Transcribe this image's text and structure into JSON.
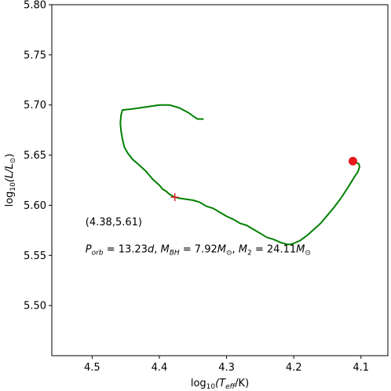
{
  "chart_data": {
    "type": "line",
    "xlabel_parts": {
      "pre": "log",
      "sub1": "10",
      "mid": "(T",
      "sub2": "eff",
      "post": "/K)"
    },
    "ylabel_parts": {
      "pre": "log",
      "sub1": "10",
      "mid": "(L/L",
      "sub2": "⊙",
      "post": ")"
    },
    "xlim": [
      4.56,
      4.06
    ],
    "ylim": [
      5.45,
      5.8
    ],
    "x_ticks": [
      4.5,
      4.4,
      4.3,
      4.2,
      4.1
    ],
    "x_tick_labels": [
      "4.5",
      "4.4",
      "4.3",
      "4.2",
      "4.1"
    ],
    "y_ticks": [
      5.5,
      5.55,
      5.6,
      5.65,
      5.7,
      5.75,
      5.8
    ],
    "y_tick_labels": [
      "5.50",
      "5.55",
      "5.60",
      "5.65",
      "5.70",
      "5.75",
      "5.80"
    ],
    "grid": false,
    "series": [
      {
        "color": "#008000",
        "x": [
          4.335,
          4.343,
          4.348,
          4.356,
          4.37,
          4.385,
          4.4,
          4.42,
          4.44,
          4.455,
          4.457,
          4.458,
          4.457,
          4.455,
          4.452,
          4.447,
          4.44,
          4.43,
          4.42,
          4.41,
          4.4,
          4.395,
          4.39,
          4.385,
          4.38,
          4.377,
          4.37,
          4.36,
          4.35,
          4.34,
          4.33,
          4.32,
          4.31,
          4.3,
          4.29,
          4.28,
          4.27,
          4.26,
          4.25,
          4.24,
          4.23,
          4.22,
          4.21,
          4.205,
          4.2,
          4.19,
          4.18,
          4.17,
          4.16,
          4.15,
          4.14,
          4.13,
          4.12,
          4.11,
          4.105,
          4.102,
          4.103,
          4.105,
          4.108,
          4.112
        ],
        "y": [
          5.686,
          5.686,
          5.688,
          5.692,
          5.697,
          5.7,
          5.7,
          5.698,
          5.696,
          5.695,
          5.69,
          5.682,
          5.674,
          5.666,
          5.658,
          5.652,
          5.646,
          5.64,
          5.634,
          5.626,
          5.62,
          5.616,
          5.614,
          5.611,
          5.609,
          5.608,
          5.607,
          5.606,
          5.605,
          5.603,
          5.599,
          5.597,
          5.593,
          5.589,
          5.586,
          5.582,
          5.58,
          5.576,
          5.572,
          5.568,
          5.566,
          5.563,
          5.561,
          5.561,
          5.562,
          5.565,
          5.57,
          5.576,
          5.582,
          5.59,
          5.598,
          5.607,
          5.617,
          5.628,
          5.633,
          5.638,
          5.641,
          5.642,
          5.643,
          5.644
        ]
      }
    ],
    "markers": [
      {
        "name": "current-position",
        "symbol": "+",
        "x": 4.377,
        "y": 5.608,
        "color": "#d62728"
      },
      {
        "name": "end-point",
        "symbol": "circle",
        "x": 4.112,
        "y": 5.644,
        "color": "#e41a1c"
      }
    ],
    "annotations": {
      "coords_label": "(4.38,5.61)",
      "coords_anchor": {
        "x": 4.51,
        "y": 5.58
      },
      "params_anchor": {
        "x": 4.51,
        "y": 5.553
      },
      "params_parts": [
        {
          "t": "P",
          "style": "italic"
        },
        {
          "t": "orb",
          "style": "sub-italic"
        },
        {
          "t": " = 13.23",
          "style": "normal"
        },
        {
          "t": "d",
          "style": "italic"
        },
        {
          "t": ", ",
          "style": "normal"
        },
        {
          "t": "M",
          "style": "italic"
        },
        {
          "t": "BH",
          "style": "sub-italic"
        },
        {
          "t": " = 7.92",
          "style": "normal"
        },
        {
          "t": "M",
          "style": "italic"
        },
        {
          "t": "⊙",
          "style": "sub"
        },
        {
          "t": ", ",
          "style": "normal"
        },
        {
          "t": "M",
          "style": "italic"
        },
        {
          "t": "2",
          "style": "sub"
        },
        {
          "t": " = 24.11",
          "style": "normal"
        },
        {
          "t": "M",
          "style": "italic"
        },
        {
          "t": "⊙",
          "style": "sub"
        }
      ]
    }
  }
}
